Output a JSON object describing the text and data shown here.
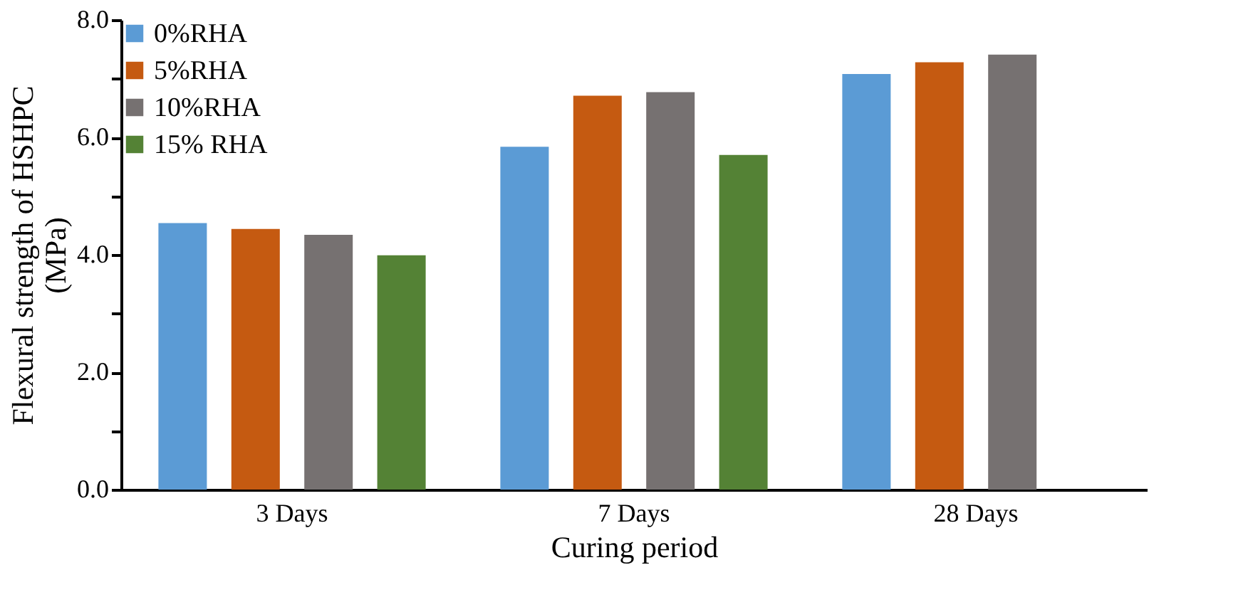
{
  "chart_data": {
    "type": "bar",
    "xlabel": "Curing period",
    "ylabel": "Flexural  strength of HSHPC\n(MPa)",
    "categories": [
      "3 Days",
      "7 Days",
      "28 Days"
    ],
    "series": [
      {
        "name": "0%RHA",
        "color": "#5b9bd5",
        "values": [
          4.54,
          5.84,
          7.08
        ]
      },
      {
        "name": "5%RHA",
        "color": "#c55a11",
        "values": [
          4.44,
          6.71,
          7.28
        ]
      },
      {
        "name": "10%RHA",
        "color": "#767171",
        "values": [
          4.34,
          6.77,
          7.41
        ]
      },
      {
        "name": "15% RHA",
        "color": "#548235",
        "values": [
          3.99,
          5.7,
          null
        ]
      }
    ],
    "ylim": [
      0,
      8
    ],
    "yticks": [
      {
        "value": 0,
        "label": "0.0"
      },
      {
        "value": 1,
        "label": null
      },
      {
        "value": 2,
        "label": "2.0"
      },
      {
        "value": 3,
        "label": null
      },
      {
        "value": 4,
        "label": "4.0"
      },
      {
        "value": 5,
        "label": null
      },
      {
        "value": 6,
        "label": "6.0"
      },
      {
        "value": 7,
        "label": null
      },
      {
        "value": 8,
        "label": "8.0"
      }
    ],
    "grid": false,
    "legend": "top left"
  }
}
